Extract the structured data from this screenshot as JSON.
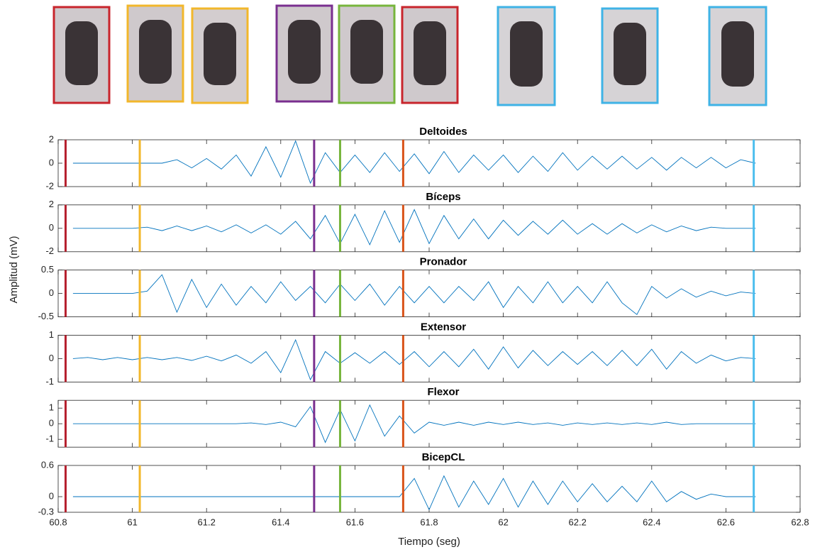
{
  "chart_data": {
    "type": "line",
    "xlabel": "Tiempo (seg)",
    "ylabel": "Amplitud (mV)",
    "xlim": [
      60.8,
      62.8
    ],
    "xticks": [
      60.8,
      61,
      61.2,
      61.4,
      61.6,
      61.8,
      62,
      62.2,
      62.4,
      62.6,
      62.8
    ],
    "x": [
      60.84,
      60.88,
      60.92,
      60.96,
      61.0,
      61.04,
      61.08,
      61.12,
      61.16,
      61.2,
      61.24,
      61.28,
      61.32,
      61.36,
      61.4,
      61.44,
      61.48,
      61.52,
      61.56,
      61.6,
      61.64,
      61.68,
      61.72,
      61.76,
      61.8,
      61.84,
      61.88,
      61.92,
      61.96,
      62.0,
      62.04,
      62.08,
      62.12,
      62.16,
      62.2,
      62.24,
      62.28,
      62.32,
      62.36,
      62.4,
      62.44,
      62.48,
      62.52,
      62.56,
      62.6,
      62.64,
      62.68
    ],
    "events": [
      {
        "x": 60.82,
        "color": "#b5202e"
      },
      {
        "x": 61.02,
        "color": "#f2b72b"
      },
      {
        "x": 61.49,
        "color": "#7a2f8f"
      },
      {
        "x": 61.56,
        "color": "#77b53c"
      },
      {
        "x": 61.73,
        "color": "#d95319"
      },
      {
        "x": 62.675,
        "color": "#4dbeee"
      }
    ],
    "panels": [
      {
        "title": "Deltoides",
        "ylim": [
          -2,
          2
        ],
        "yticks": [
          -2,
          0,
          2
        ],
        "color": "#0072bd",
        "values": [
          0,
          0,
          0,
          0,
          0,
          0,
          0,
          0.3,
          -0.4,
          0.4,
          -0.5,
          0.7,
          -1.1,
          1.4,
          -1.2,
          1.9,
          -1.7,
          0.9,
          -0.8,
          0.7,
          -0.8,
          0.9,
          -0.7,
          0.8,
          -0.9,
          1,
          -0.8,
          0.7,
          -0.6,
          0.7,
          -0.8,
          0.6,
          -0.7,
          0.9,
          -0.6,
          0.6,
          -0.5,
          0.6,
          -0.5,
          0.5,
          -0.6,
          0.5,
          -0.4,
          0.5,
          -0.4,
          0.3,
          0
        ]
      },
      {
        "title": "Bíceps",
        "ylim": [
          -2,
          2
        ],
        "yticks": [
          -2,
          0,
          2
        ],
        "color": "#0072bd",
        "values": [
          0,
          0,
          0,
          0,
          0,
          0.1,
          -0.2,
          0.2,
          -0.2,
          0.2,
          -0.3,
          0.3,
          -0.4,
          0.3,
          -0.5,
          0.6,
          -0.9,
          1.1,
          -1.3,
          1.2,
          -1.4,
          1.5,
          -1.2,
          1.6,
          -1.3,
          1.1,
          -0.9,
          0.8,
          -0.9,
          0.7,
          -0.6,
          0.6,
          -0.5,
          0.7,
          -0.5,
          0.4,
          -0.5,
          0.4,
          -0.4,
          0.3,
          -0.3,
          0.2,
          -0.2,
          0.1,
          0,
          0,
          0
        ]
      },
      {
        "title": "Pronador",
        "ylim": [
          -0.5,
          0.5
        ],
        "yticks": [
          -0.5,
          0,
          0.5
        ],
        "color": "#0072bd",
        "values": [
          0,
          0,
          0,
          0,
          0,
          0.05,
          0.4,
          -0.4,
          0.3,
          -0.3,
          0.2,
          -0.25,
          0.15,
          -0.2,
          0.25,
          -0.15,
          0.15,
          -0.2,
          0.2,
          -0.15,
          0.2,
          -0.25,
          0.15,
          -0.2,
          0.15,
          -0.2,
          0.15,
          -0.15,
          0.25,
          -0.3,
          0.15,
          -0.2,
          0.25,
          -0.2,
          0.15,
          -0.2,
          0.25,
          -0.2,
          -0.45,
          0.15,
          -0.1,
          0.1,
          -0.08,
          0.05,
          -0.05,
          0.03,
          0
        ]
      },
      {
        "title": "Extensor",
        "ylim": [
          -1,
          1
        ],
        "yticks": [
          -1,
          0,
          1
        ],
        "color": "#0072bd",
        "values": [
          0,
          0.05,
          -0.05,
          0.05,
          -0.05,
          0.05,
          -0.05,
          0.05,
          -0.08,
          0.1,
          -0.1,
          0.15,
          -0.2,
          0.3,
          -0.6,
          0.8,
          -0.9,
          0.3,
          -0.2,
          0.25,
          -0.2,
          0.3,
          -0.25,
          0.3,
          -0.35,
          0.3,
          -0.35,
          0.4,
          -0.45,
          0.5,
          -0.4,
          0.35,
          -0.3,
          0.3,
          -0.25,
          0.3,
          -0.3,
          0.35,
          -0.3,
          0.4,
          -0.45,
          0.3,
          -0.2,
          0.15,
          -0.1,
          0.05,
          0
        ]
      },
      {
        "title": "Flexor",
        "ylim": [
          -1.5,
          1.5
        ],
        "yticks": [
          -1,
          0,
          1
        ],
        "color": "#0072bd",
        "values": [
          0,
          0,
          0,
          0,
          0,
          0,
          0,
          0,
          0,
          0,
          0,
          0,
          0.05,
          -0.05,
          0.1,
          -0.2,
          1.1,
          -1.2,
          0.9,
          -1.1,
          1.2,
          -0.8,
          0.5,
          -0.6,
          0.1,
          -0.1,
          0.1,
          -0.1,
          0.1,
          -0.05,
          0.1,
          -0.05,
          0.05,
          -0.1,
          0.05,
          -0.05,
          0.05,
          -0.05,
          0.05,
          -0.05,
          0.1,
          -0.05,
          0,
          0,
          0,
          0,
          0
        ]
      },
      {
        "title": "BicepCL",
        "ylim": [
          -0.3,
          0.6
        ],
        "yticks": [
          -0.3,
          0,
          0.6
        ],
        "color": "#0072bd",
        "values": [
          0,
          0,
          0,
          0,
          0,
          0,
          0,
          0,
          0,
          0,
          0,
          0,
          0,
          0,
          0,
          0,
          0,
          0,
          0,
          0,
          0,
          0,
          0,
          0.35,
          -0.25,
          0.4,
          -0.2,
          0.3,
          -0.15,
          0.35,
          -0.2,
          0.3,
          -0.15,
          0.3,
          -0.1,
          0.25,
          -0.1,
          0.2,
          -0.1,
          0.3,
          -0.1,
          0.1,
          -0.05,
          0.05,
          0,
          0,
          0
        ]
      }
    ]
  }
}
